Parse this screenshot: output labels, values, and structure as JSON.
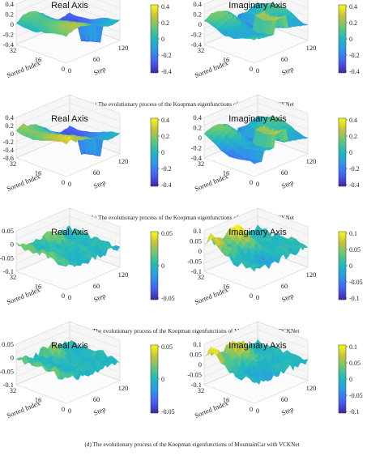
{
  "figure": {
    "panels": [
      {
        "caption": "(a) The evolutionary process of the Koopman eigenfunctions of CartPole with DCKNet",
        "env": "cartpole",
        "plots": [
          {
            "title": "Real Axis",
            "z_ticks": [
              "0.4",
              "0.2",
              "0",
              "-0.2",
              "-0.4"
            ],
            "cb_ticks": [
              "0.4",
              "0.2",
              "0",
              "-0.2",
              "-0.4"
            ]
          },
          {
            "title": "Imaginary Axis",
            "z_ticks": [
              "0.4",
              "0.2",
              "0",
              "-0.2",
              "-0.4"
            ],
            "cb_ticks": [
              "0.4",
              "0.2",
              "0",
              "-0.2",
              "-0.4"
            ]
          }
        ]
      },
      {
        "caption": "(b) The evolutionary process of the Koopman eigenfunctions of CartPole with VCKNet",
        "env": "cartpole",
        "plots": [
          {
            "title": "Real Axis",
            "z_ticks": [
              "0.4",
              "0.2",
              "0",
              "-0.2",
              "-0.4",
              "-0.6"
            ],
            "cb_ticks": [
              "0.4",
              "0.2",
              "0",
              "-0.2",
              "-0.4"
            ]
          },
          {
            "title": "Imaginary Axis",
            "z_ticks": [
              "0.4",
              "0.2",
              "0",
              "-0.2",
              "-0.4"
            ],
            "cb_ticks": [
              "0.4",
              "0.2",
              "0",
              "-0.2",
              "-0.4"
            ]
          }
        ]
      },
      {
        "caption": "(c) The evolutionary process of the Koopman eigenfunctions of MountainCar with DCKNet",
        "env": "mountaincar",
        "plots": [
          {
            "title": "Real Axis",
            "z_ticks": [
              "0.05",
              "0",
              "-0.05",
              "-0.1"
            ],
            "cb_ticks": [
              "0.05",
              "0",
              "-0.05"
            ]
          },
          {
            "title": "Imaginary Axis",
            "z_ticks": [
              "0.1",
              "0.05",
              "0",
              "-0.05",
              "-0.1"
            ],
            "cb_ticks": [
              "0.1",
              "0.05",
              "0",
              "-0.05",
              "-0.1"
            ]
          }
        ]
      },
      {
        "caption": "(d) The evolutionary process of the Koopman eigenfunctions of MountainCar with VCKNet",
        "env": "mountaincar",
        "plots": [
          {
            "title": "Real Axis",
            "z_ticks": [
              "0.05",
              "0",
              "-0.05",
              "-0.1"
            ],
            "cb_ticks": [
              "0.05",
              "0",
              "-0.05"
            ]
          },
          {
            "title": "Imaginary Axis",
            "z_ticks": [
              "0.1",
              "0.05",
              "0",
              "-0.05",
              "-0.1"
            ],
            "cb_ticks": [
              "0.1",
              "0.05",
              "0",
              "-0.05",
              "-0.1"
            ]
          }
        ]
      }
    ],
    "x_label": "Step",
    "y_label": "Sorted Index",
    "x_ticks": [
      "0",
      "60",
      "120"
    ],
    "y_ticks": [
      "32",
      "16",
      "0"
    ],
    "colormap": [
      "#3e26a8",
      "#4760f3",
      "#2d96e8",
      "#1fb7c0",
      "#62c87a",
      "#c6c13b",
      "#f9fb15"
    ],
    "grid": true
  }
}
